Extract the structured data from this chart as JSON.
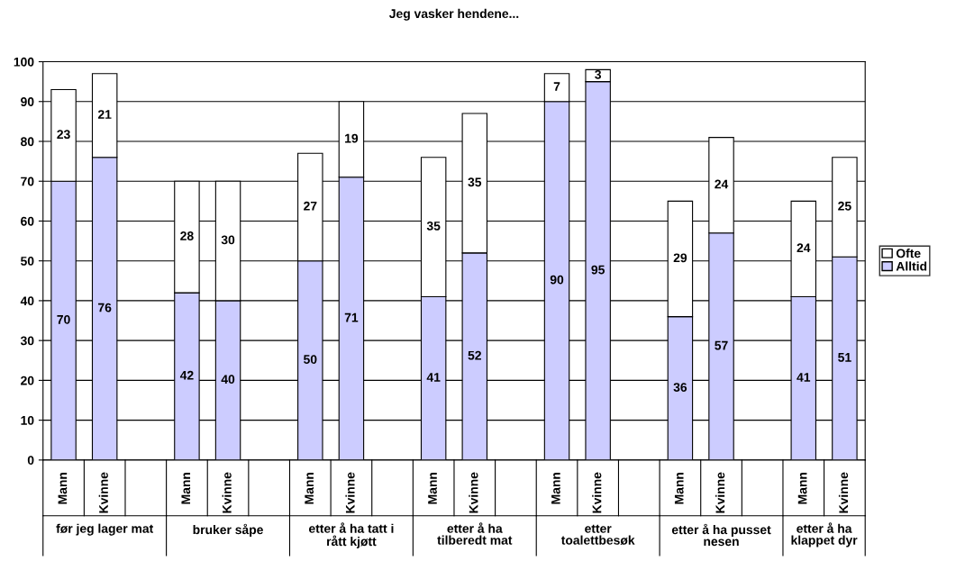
{
  "chart_data": {
    "type": "bar",
    "title": "Jeg vasker hendene...",
    "stacked": true,
    "categories": [
      "Mann",
      "Kvinne",
      null,
      "Mann",
      "Kvinne",
      null,
      "Mann",
      "Kvinne",
      null,
      "Mann",
      "Kvinne",
      null,
      "Mann",
      "Kvinne",
      null,
      "Mann",
      "Kvinne",
      null,
      "Mann",
      "Kvinne"
    ],
    "series": [
      {
        "name": "Alltid",
        "color": "#ccccff",
        "values": [
          70,
          76,
          null,
          42,
          40,
          null,
          50,
          71,
          null,
          41,
          52,
          null,
          90,
          95,
          null,
          36,
          57,
          null,
          41,
          51
        ]
      },
      {
        "name": "Ofte",
        "color": "#ffffff",
        "values": [
          23,
          21,
          null,
          28,
          30,
          null,
          27,
          19,
          null,
          35,
          35,
          null,
          7,
          3,
          null,
          29,
          24,
          null,
          24,
          25
        ]
      }
    ],
    "annotations": [
      "før jeg lager mat",
      "bruker såpe",
      "etter å ha tatt i\nrått kjøtt",
      "etter å ha\ntilberedt mat",
      "etter\ntoalettbesøk",
      "etter å ha pusset\nnesen",
      "etter å ha\nklappet dyr"
    ],
    "ylim": [
      0,
      100
    ],
    "yticks": [
      0,
      10,
      20,
      30,
      40,
      50,
      60,
      70,
      80,
      90,
      100
    ],
    "grid": "y",
    "data_labels": true,
    "legend": "right"
  }
}
